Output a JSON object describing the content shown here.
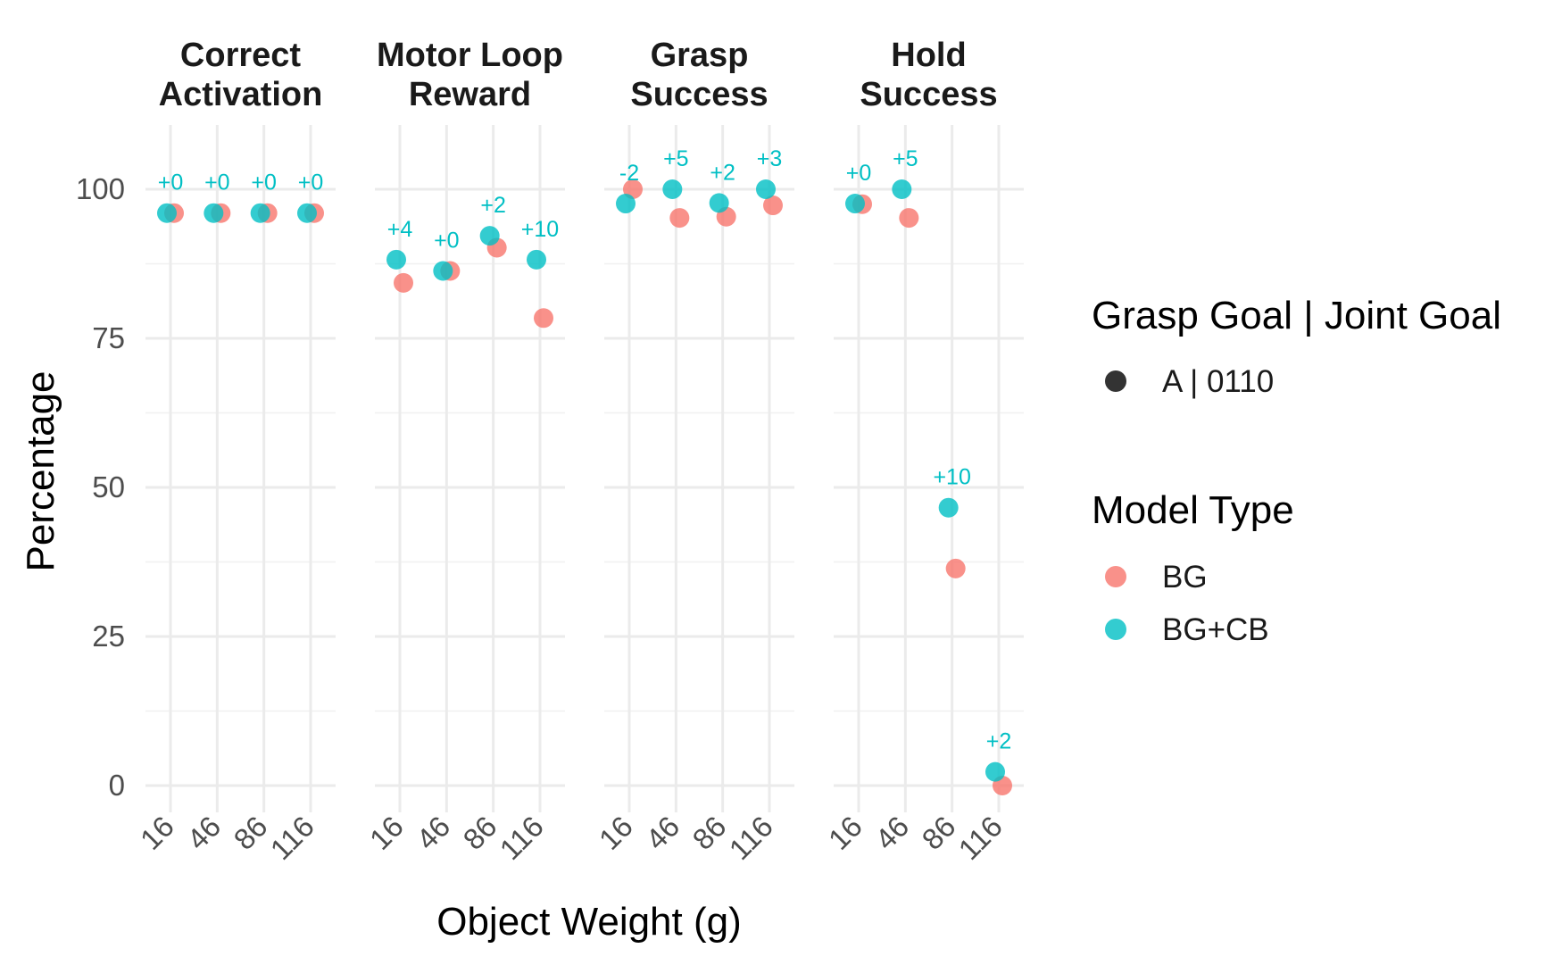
{
  "chart_data": {
    "type": "scatter",
    "xlabel": "Object Weight (g)",
    "ylabel": "Percentage",
    "x_categories": [
      "16",
      "46",
      "86",
      "116"
    ],
    "ylim": [
      -5,
      110
    ],
    "y_ticks": [
      0,
      25,
      50,
      75,
      100
    ],
    "grid": true,
    "facets": [
      {
        "title_lines": [
          "Correct",
          "Activation"
        ],
        "series": [
          {
            "name": "BG",
            "values": [
              96,
              96,
              96,
              96
            ]
          },
          {
            "name": "BG+CB",
            "values": [
              96,
              96,
              96,
              96
            ]
          }
        ],
        "diff_labels": [
          "+0",
          "+0",
          "+0",
          "+0"
        ]
      },
      {
        "title_lines": [
          "Motor Loop",
          "Reward"
        ],
        "series": [
          {
            "name": "BG",
            "values": [
              84.3,
              86.3,
              90.2,
              78.4
            ]
          },
          {
            "name": "BG+CB",
            "values": [
              88.2,
              86.3,
              92.2,
              88.2
            ]
          }
        ],
        "diff_labels": [
          "+4",
          "+0",
          "+2",
          "+10"
        ]
      },
      {
        "title_lines": [
          "Grasp",
          "Success"
        ],
        "series": [
          {
            "name": "BG",
            "values": [
              100,
              95.2,
              95.4,
              97.3
            ]
          },
          {
            "name": "BG+CB",
            "values": [
              97.6,
              100,
              97.7,
              100
            ]
          }
        ],
        "diff_labels": [
          "-2",
          "+5",
          "+2",
          "+3"
        ]
      },
      {
        "title_lines": [
          "Hold",
          "Success"
        ],
        "series": [
          {
            "name": "BG",
            "values": [
              97.5,
              95.2,
              36.4,
              0
            ]
          },
          {
            "name": "BG+CB",
            "values": [
              97.6,
              100,
              46.6,
              2.3
            ]
          }
        ],
        "diff_labels": [
          "+0",
          "+5",
          "+10",
          "+2"
        ]
      }
    ],
    "legend": {
      "placement": "right",
      "shape_title": "Grasp Goal | Joint Goal",
      "shape_items": [
        {
          "label": "A | 0110",
          "color": "#333333"
        }
      ],
      "color_title": "Model Type",
      "color_items": [
        {
          "label": "BG",
          "color": "#F8766D"
        },
        {
          "label": "BG+CB",
          "color": "#00BFC4"
        }
      ]
    },
    "diff_label_color": "#00BFC4"
  }
}
